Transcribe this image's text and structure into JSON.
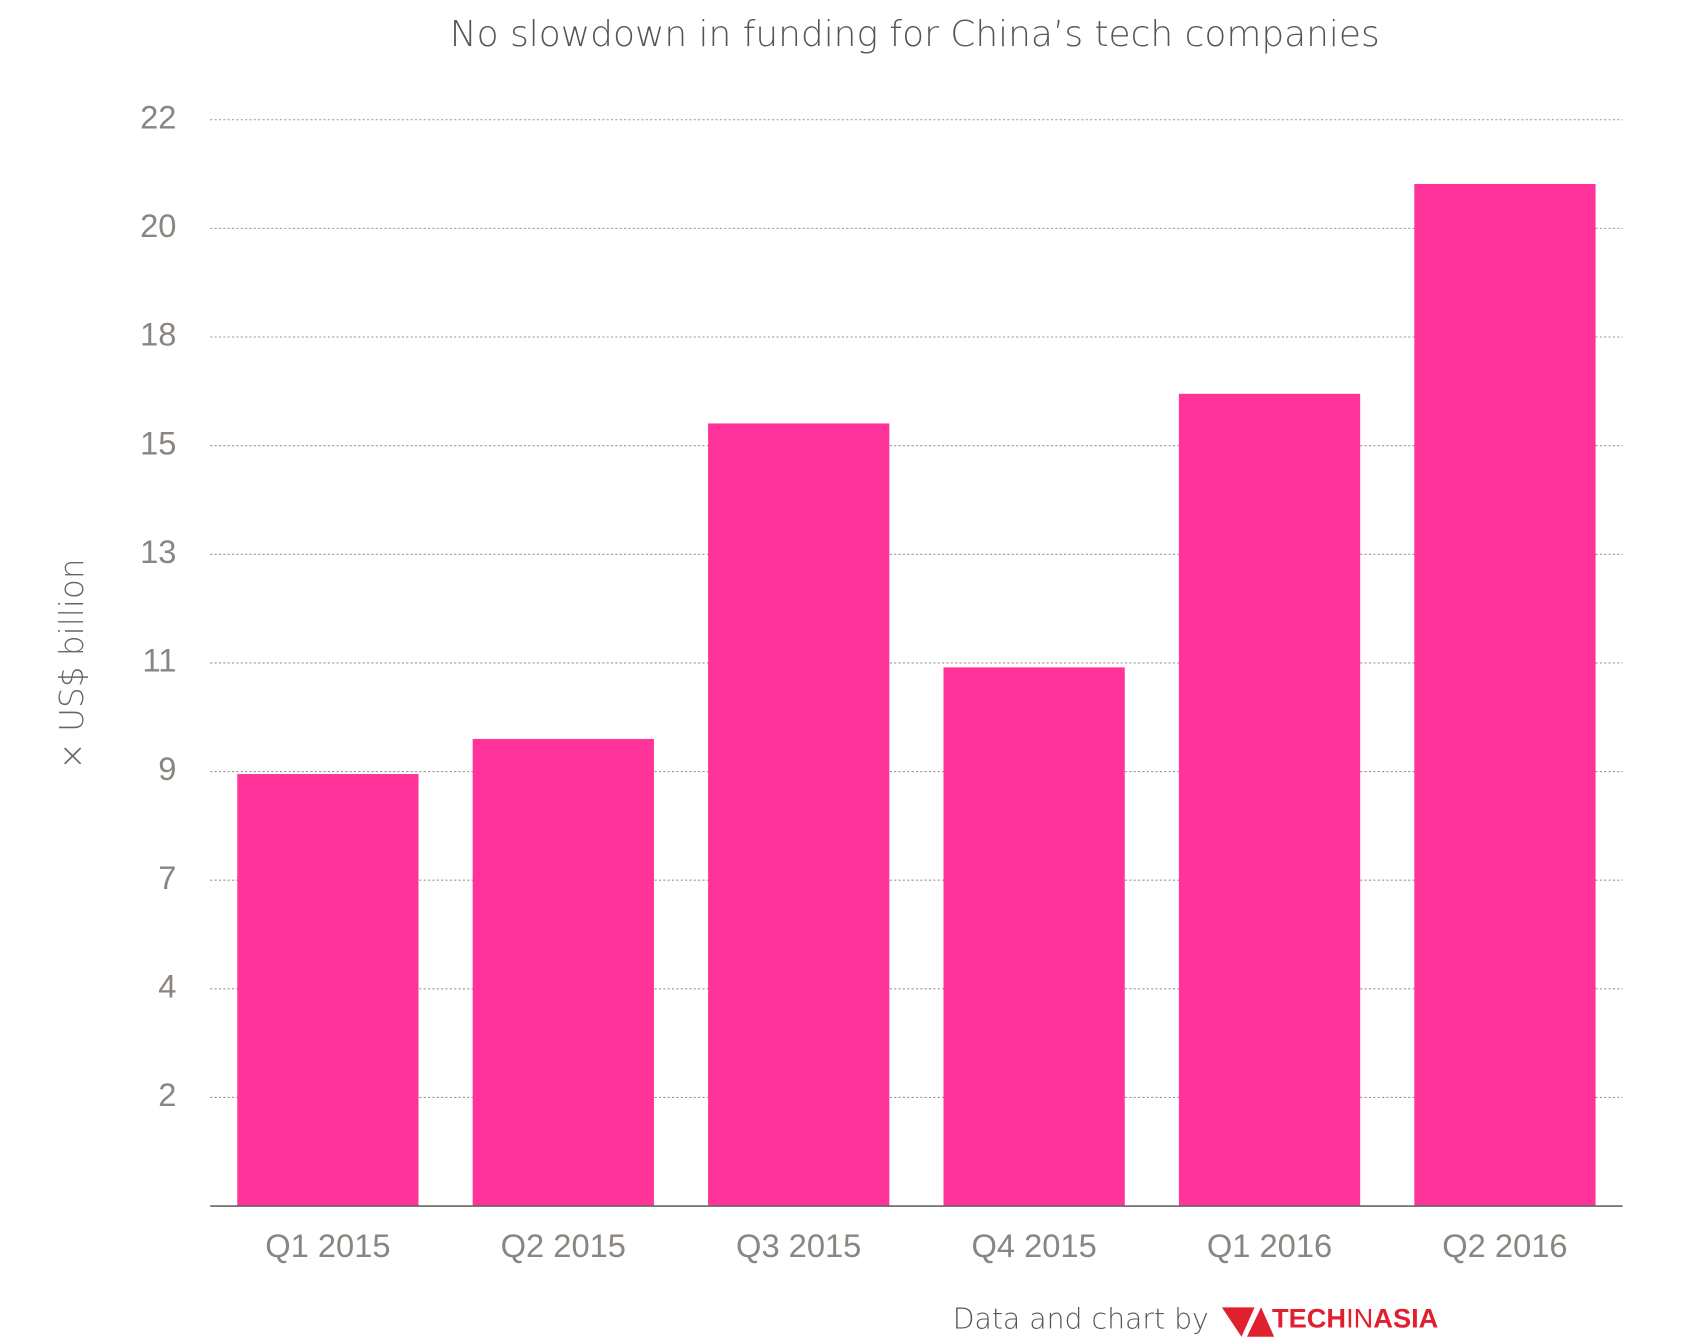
{
  "chart_data": {
    "type": "bar",
    "title": "No slowdown in funding for China’s tech companies",
    "y_label": "× US$ billion",
    "categories": [
      "Q1 2015",
      "Q2 2015",
      "Q3 2015",
      "Q4 2015",
      "Q1 2016",
      "Q2 2016"
    ],
    "values": [
      8.75,
      9.46,
      15.85,
      10.91,
      16.45,
      20.7
    ],
    "color": "#ff3399",
    "ylim": [
      0,
      22
    ],
    "yticks": [
      {
        "value": 2.2,
        "label": "2"
      },
      {
        "value": 4.4,
        "label": "4"
      },
      {
        "value": 6.6,
        "label": "7"
      },
      {
        "value": 8.8,
        "label": "9"
      },
      11,
      {
        "value": 13.2,
        "label": "13"
      },
      {
        "value": 15.4,
        "label": "15"
      },
      {
        "value": 17.6,
        "label": "18"
      },
      {
        "value": 19.8,
        "label": "20"
      },
      22
    ],
    "grid": true,
    "credit": "Data and chart by",
    "logo": [
      "TECH",
      "IN",
      "ASIA"
    ]
  }
}
